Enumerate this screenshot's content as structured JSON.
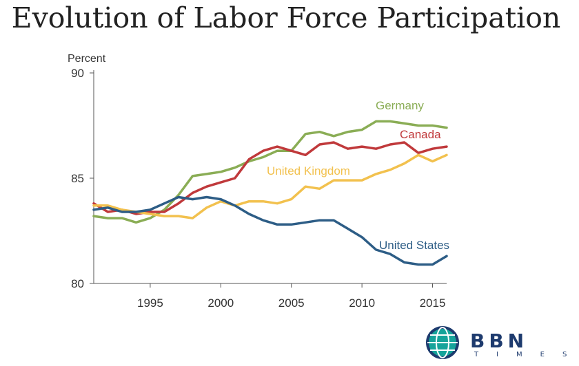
{
  "title": "Evolution of Labor Force Participation",
  "logo": {
    "text": "BBN",
    "subtext": "TIMES",
    "colors": {
      "ring": "#1e3b6e",
      "globe": "#16a39a"
    }
  },
  "chart_data": {
    "type": "line",
    "title": "Evolution of Labor Force Participation",
    "ylabel": "Percent",
    "xlabel": "",
    "xlim": [
      1991,
      2016
    ],
    "ylim": [
      80,
      90
    ],
    "x_ticks": [
      1995,
      2000,
      2005,
      2010,
      2015
    ],
    "y_ticks": [
      80,
      85,
      90
    ],
    "x_tick_labels": [
      "1995",
      "2000",
      "2005",
      "2010",
      "2015"
    ],
    "y_tick_labels": [
      "80",
      "85",
      "90"
    ],
    "grid": false,
    "legend": "inline labels",
    "x": [
      1991,
      1992,
      1993,
      1994,
      1995,
      1996,
      1997,
      1998,
      1999,
      2000,
      2001,
      2002,
      2003,
      2004,
      2005,
      2006,
      2007,
      2008,
      2009,
      2010,
      2011,
      2012,
      2013,
      2014,
      2015,
      2016
    ],
    "series": [
      {
        "name": "Germany",
        "color": "#8aad55",
        "values": [
          83.2,
          83.1,
          83.1,
          82.9,
          83.1,
          83.5,
          84.2,
          85.1,
          85.2,
          85.3,
          85.5,
          85.8,
          86.0,
          86.3,
          86.3,
          87.1,
          87.2,
          87.0,
          87.2,
          87.3,
          87.7,
          87.7,
          87.6,
          87.5,
          87.5,
          87.4
        ]
      },
      {
        "name": "Canada",
        "color": "#c0393b",
        "values": [
          83.8,
          83.4,
          83.5,
          83.3,
          83.4,
          83.4,
          83.8,
          84.3,
          84.6,
          84.8,
          85.0,
          85.9,
          86.3,
          86.5,
          86.3,
          86.1,
          86.6,
          86.7,
          86.4,
          86.5,
          86.4,
          86.6,
          86.7,
          86.2,
          86.4,
          86.5
        ]
      },
      {
        "name": "United Kingdom",
        "color": "#f2c14e",
        "values": [
          83.7,
          83.7,
          83.5,
          83.4,
          83.3,
          83.2,
          83.2,
          83.1,
          83.6,
          83.9,
          83.7,
          83.9,
          83.9,
          83.8,
          84.0,
          84.6,
          84.5,
          84.9,
          84.9,
          84.9,
          85.2,
          85.4,
          85.7,
          86.1,
          85.8,
          86.1
        ]
      },
      {
        "name": "United States",
        "color": "#2d5d86",
        "values": [
          83.5,
          83.6,
          83.4,
          83.4,
          83.5,
          83.8,
          84.1,
          84.0,
          84.1,
          84.0,
          83.7,
          83.3,
          83.0,
          82.8,
          82.8,
          82.9,
          83.0,
          83.0,
          82.6,
          82.2,
          81.6,
          81.4,
          81.0,
          80.9,
          80.9,
          81.3
        ]
      }
    ],
    "series_labels": [
      {
        "text": "Germany",
        "color": "#8aad55"
      },
      {
        "text": "Canada",
        "color": "#c0393b"
      },
      {
        "text": "United Kingdom",
        "color": "#f2c14e"
      },
      {
        "text": "United States",
        "color": "#2d5d86"
      }
    ]
  }
}
